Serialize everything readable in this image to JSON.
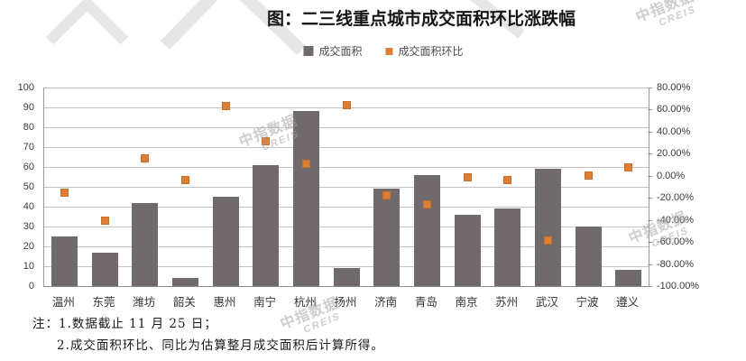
{
  "title": "图：二三线重点城市成交面积环比涨跌幅",
  "legend": [
    {
      "label": "成交面积",
      "color": "#716a6d",
      "type": "bar"
    },
    {
      "label": "成交面积环比",
      "color": "#dc7e33",
      "type": "point"
    }
  ],
  "chart_data": {
    "type": "bar",
    "title": "图：二三线重点城市成交面积环比涨跌幅",
    "categories": [
      "温州",
      "东莞",
      "潍坊",
      "韶关",
      "惠州",
      "南宁",
      "杭州",
      "扬州",
      "济南",
      "青岛",
      "南京",
      "苏州",
      "武汉",
      "宁波",
      "遵义"
    ],
    "series": [
      {
        "name": "成交面积",
        "type": "bar",
        "axis": "left",
        "color": "#716a6d",
        "values": [
          25,
          17,
          42,
          4,
          45,
          61,
          88,
          9,
          49,
          56,
          36,
          39,
          59,
          30,
          8
        ]
      },
      {
        "name": "成交面积环比",
        "type": "scatter",
        "axis": "right",
        "color": "#dc7e33",
        "unit": "%",
        "values": [
          -15,
          -41,
          16,
          -4,
          63,
          31,
          11,
          64,
          -18,
          -26,
          -1,
          -4,
          -59,
          0,
          8
        ]
      }
    ],
    "left_axis": {
      "min": 0,
      "max": 100,
      "step": 10,
      "ticks": [
        "100",
        "90",
        "80",
        "70",
        "60",
        "50",
        "40",
        "30",
        "20",
        "10",
        "0"
      ]
    },
    "right_axis": {
      "min": -100,
      "max": 80,
      "step": 20,
      "ticks": [
        "80.00%",
        "60.00%",
        "40.00%",
        "20.00%",
        "0.00%",
        "-20.00%",
        "-40.00%",
        "-60.00%",
        "-80.00%",
        "-100.00%"
      ]
    },
    "grid": true,
    "legend_position": "top"
  },
  "notes": {
    "prefix": "注：",
    "line1": "1.数据截止 11 月 25 日；",
    "line2": "2.成交面积环比、同比为估算整月成交面积后计算所得。"
  },
  "watermark": {
    "line1": "中指数据",
    "line2": "CREIS"
  }
}
